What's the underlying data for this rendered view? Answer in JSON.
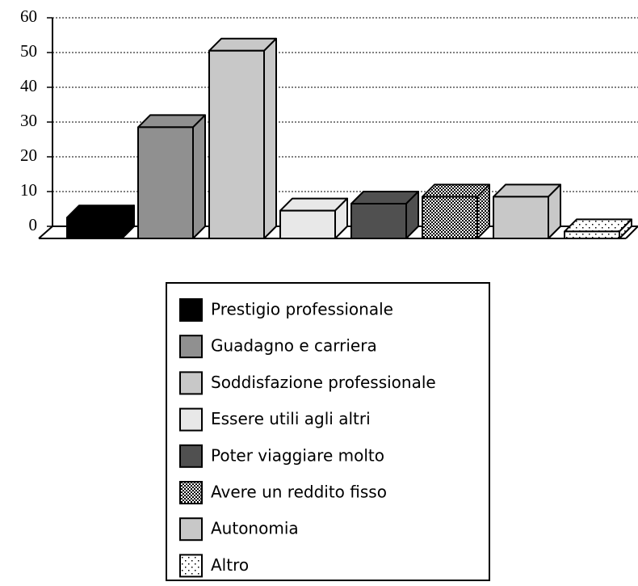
{
  "chart_data": {
    "type": "bar",
    "categories": [
      "Prestigio professionale",
      "Guadagno e carriera",
      "Soddisfazione professionale",
      "Essere utili agli altri",
      "Poter viaggiare molto",
      "Avere un reddito fisso",
      "Autonomia",
      "Altro"
    ],
    "values": [
      6,
      32,
      54,
      8,
      10,
      12,
      12,
      2
    ],
    "colors": [
      "#000000",
      "#909090",
      "#c8c8c8",
      "#e8e8e8",
      "#505050",
      "url(#dense)",
      "#c8c8c8",
      "url(#sparse)"
    ],
    "ylim": [
      0,
      60
    ],
    "yticks": [
      0,
      10,
      20,
      30,
      40,
      50,
      60
    ],
    "grid": true
  }
}
